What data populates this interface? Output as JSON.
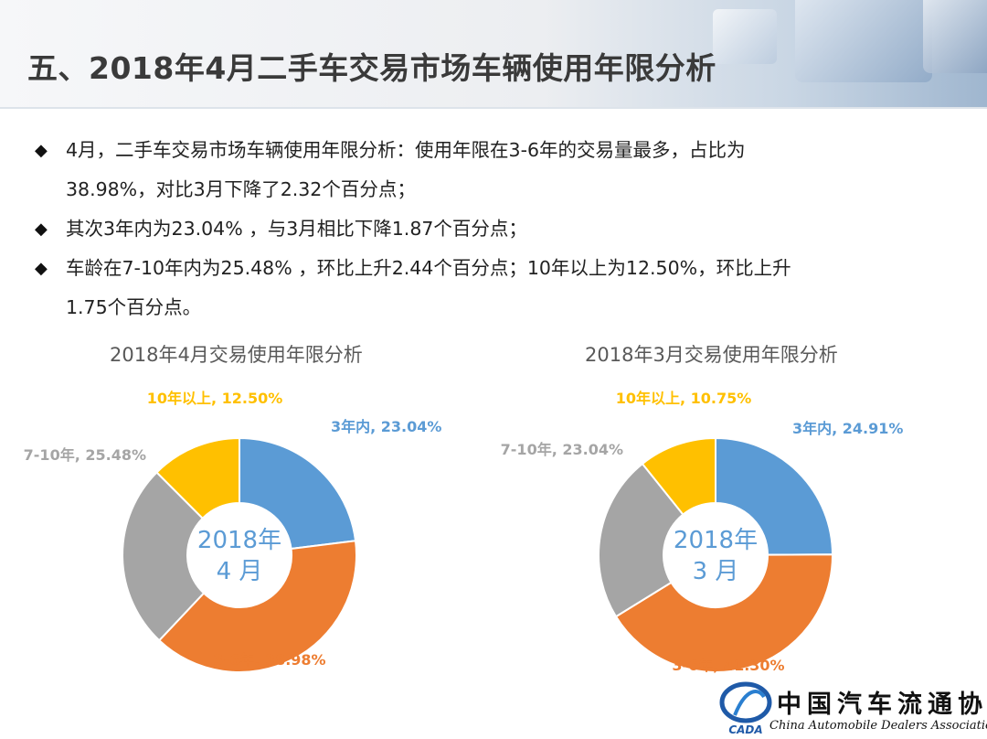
{
  "title": "五、2018年4月二手车交易市场车辆使用年限分析",
  "bullets": [
    {
      "lines": [
        "4月，二手车交易市场车辆使用年限分析：使用年限在3-6年的交易量最多，占比为",
        "38.98%，对比3月下降了2.32个百分点；"
      ]
    },
    {
      "lines": [
        "其次3年内为23.04% ，与3月相比下降1.87个百分点；"
      ]
    },
    {
      "lines": [
        "车龄在7-10年内为25.48% ，环比上升2.44个百分点；10年以上为12.50%，环比上升",
        "1.75个百分点。"
      ]
    }
  ],
  "bullet_icon": "diamond-bullet-icon",
  "chart_data": [
    {
      "type": "pie",
      "title": "2018年4月交易使用年限分析",
      "center_label": [
        "2018年",
        "4 月"
      ],
      "donut": true,
      "slices": [
        {
          "label": "3年内",
          "value": 23.04,
          "color": "#5B9BD5",
          "data_label": "3年内, 23.04%"
        },
        {
          "label": "3-6年",
          "value": 38.98,
          "color": "#ED7D31",
          "data_label": "3-6年, 38.98%"
        },
        {
          "label": "7-10年",
          "value": 25.48,
          "color": "#A5A5A5",
          "data_label": "7-10年, 25.48%"
        },
        {
          "label": "10年以上",
          "value": 12.5,
          "color": "#FFC000",
          "data_label": "10年以上, 12.50%"
        }
      ]
    },
    {
      "type": "pie",
      "title": "2018年3月交易使用年限分析",
      "center_label": [
        "2018年",
        "3 月"
      ],
      "donut": true,
      "slices": [
        {
          "label": "3年内",
          "value": 24.91,
          "color": "#5B9BD5",
          "data_label": "3年内, 24.91%"
        },
        {
          "label": "3-6年",
          "value": 41.3,
          "color": "#ED7D31",
          "data_label": "3-6年, 41.30%"
        },
        {
          "label": "7-10年",
          "value": 23.04,
          "color": "#A5A5A5",
          "data_label": "7-10年, 23.04%"
        },
        {
          "label": "10年以上",
          "value": 10.75,
          "color": "#FFC000",
          "data_label": "10年以上, 10.75%"
        }
      ]
    }
  ],
  "logo": {
    "icon": "cada-logo-icon",
    "abbr": "CADA",
    "name_cn": "中国汽车流通协会",
    "name_en": "China Automobile Dealers Association"
  }
}
